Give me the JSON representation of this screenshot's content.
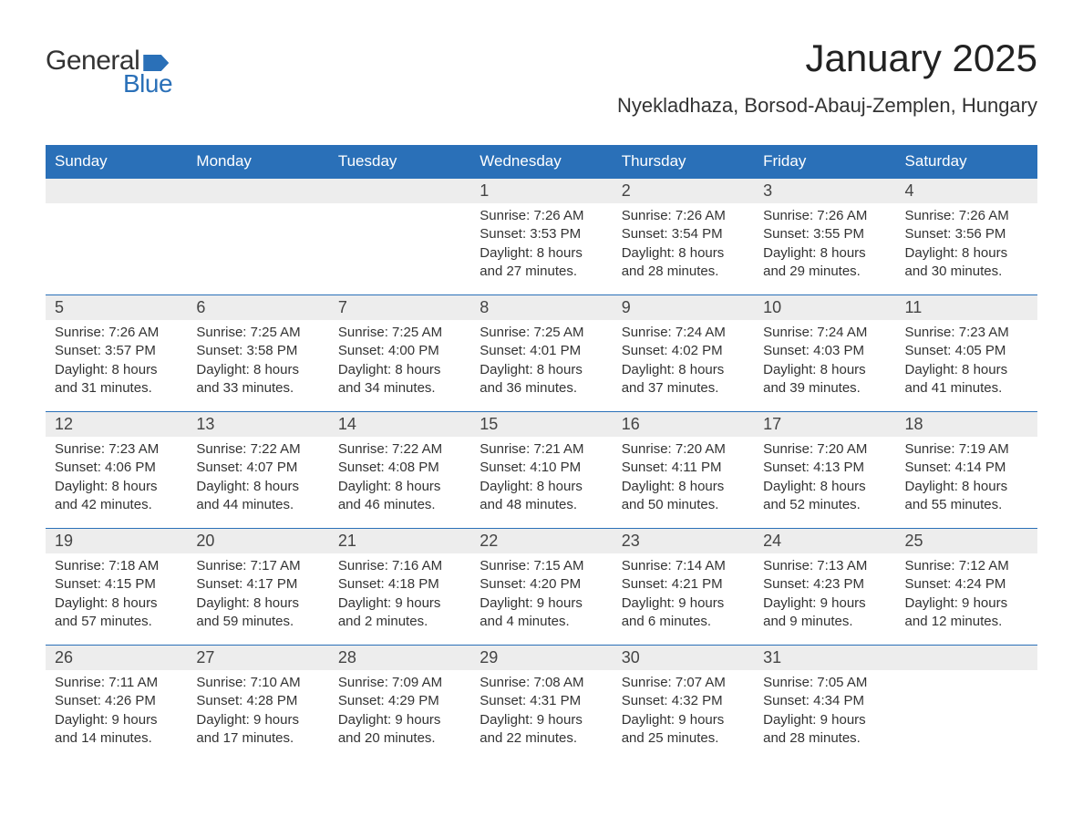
{
  "logo": {
    "general": "General",
    "blue": "Blue"
  },
  "header": {
    "title": "January 2025",
    "subtitle": "Nyekladhaza, Borsod-Abauj-Zemplen, Hungary"
  },
  "colors": {
    "accent": "#2a70b8",
    "header_bg": "#2a70b8",
    "day_num_bg": "#ededed"
  },
  "weekdays": [
    "Sunday",
    "Monday",
    "Tuesday",
    "Wednesday",
    "Thursday",
    "Friday",
    "Saturday"
  ],
  "weeks": [
    [
      {
        "empty": true
      },
      {
        "empty": true
      },
      {
        "empty": true
      },
      {
        "day": "1",
        "sunrise": "Sunrise: 7:26 AM",
        "sunset": "Sunset: 3:53 PM",
        "d1": "Daylight: 8 hours",
        "d2": "and 27 minutes."
      },
      {
        "day": "2",
        "sunrise": "Sunrise: 7:26 AM",
        "sunset": "Sunset: 3:54 PM",
        "d1": "Daylight: 8 hours",
        "d2": "and 28 minutes."
      },
      {
        "day": "3",
        "sunrise": "Sunrise: 7:26 AM",
        "sunset": "Sunset: 3:55 PM",
        "d1": "Daylight: 8 hours",
        "d2": "and 29 minutes."
      },
      {
        "day": "4",
        "sunrise": "Sunrise: 7:26 AM",
        "sunset": "Sunset: 3:56 PM",
        "d1": "Daylight: 8 hours",
        "d2": "and 30 minutes."
      }
    ],
    [
      {
        "day": "5",
        "sunrise": "Sunrise: 7:26 AM",
        "sunset": "Sunset: 3:57 PM",
        "d1": "Daylight: 8 hours",
        "d2": "and 31 minutes."
      },
      {
        "day": "6",
        "sunrise": "Sunrise: 7:25 AM",
        "sunset": "Sunset: 3:58 PM",
        "d1": "Daylight: 8 hours",
        "d2": "and 33 minutes."
      },
      {
        "day": "7",
        "sunrise": "Sunrise: 7:25 AM",
        "sunset": "Sunset: 4:00 PM",
        "d1": "Daylight: 8 hours",
        "d2": "and 34 minutes."
      },
      {
        "day": "8",
        "sunrise": "Sunrise: 7:25 AM",
        "sunset": "Sunset: 4:01 PM",
        "d1": "Daylight: 8 hours",
        "d2": "and 36 minutes."
      },
      {
        "day": "9",
        "sunrise": "Sunrise: 7:24 AM",
        "sunset": "Sunset: 4:02 PM",
        "d1": "Daylight: 8 hours",
        "d2": "and 37 minutes."
      },
      {
        "day": "10",
        "sunrise": "Sunrise: 7:24 AM",
        "sunset": "Sunset: 4:03 PM",
        "d1": "Daylight: 8 hours",
        "d2": "and 39 minutes."
      },
      {
        "day": "11",
        "sunrise": "Sunrise: 7:23 AM",
        "sunset": "Sunset: 4:05 PM",
        "d1": "Daylight: 8 hours",
        "d2": "and 41 minutes."
      }
    ],
    [
      {
        "day": "12",
        "sunrise": "Sunrise: 7:23 AM",
        "sunset": "Sunset: 4:06 PM",
        "d1": "Daylight: 8 hours",
        "d2": "and 42 minutes."
      },
      {
        "day": "13",
        "sunrise": "Sunrise: 7:22 AM",
        "sunset": "Sunset: 4:07 PM",
        "d1": "Daylight: 8 hours",
        "d2": "and 44 minutes."
      },
      {
        "day": "14",
        "sunrise": "Sunrise: 7:22 AM",
        "sunset": "Sunset: 4:08 PM",
        "d1": "Daylight: 8 hours",
        "d2": "and 46 minutes."
      },
      {
        "day": "15",
        "sunrise": "Sunrise: 7:21 AM",
        "sunset": "Sunset: 4:10 PM",
        "d1": "Daylight: 8 hours",
        "d2": "and 48 minutes."
      },
      {
        "day": "16",
        "sunrise": "Sunrise: 7:20 AM",
        "sunset": "Sunset: 4:11 PM",
        "d1": "Daylight: 8 hours",
        "d2": "and 50 minutes."
      },
      {
        "day": "17",
        "sunrise": "Sunrise: 7:20 AM",
        "sunset": "Sunset: 4:13 PM",
        "d1": "Daylight: 8 hours",
        "d2": "and 52 minutes."
      },
      {
        "day": "18",
        "sunrise": "Sunrise: 7:19 AM",
        "sunset": "Sunset: 4:14 PM",
        "d1": "Daylight: 8 hours",
        "d2": "and 55 minutes."
      }
    ],
    [
      {
        "day": "19",
        "sunrise": "Sunrise: 7:18 AM",
        "sunset": "Sunset: 4:15 PM",
        "d1": "Daylight: 8 hours",
        "d2": "and 57 minutes."
      },
      {
        "day": "20",
        "sunrise": "Sunrise: 7:17 AM",
        "sunset": "Sunset: 4:17 PM",
        "d1": "Daylight: 8 hours",
        "d2": "and 59 minutes."
      },
      {
        "day": "21",
        "sunrise": "Sunrise: 7:16 AM",
        "sunset": "Sunset: 4:18 PM",
        "d1": "Daylight: 9 hours",
        "d2": "and 2 minutes."
      },
      {
        "day": "22",
        "sunrise": "Sunrise: 7:15 AM",
        "sunset": "Sunset: 4:20 PM",
        "d1": "Daylight: 9 hours",
        "d2": "and 4 minutes."
      },
      {
        "day": "23",
        "sunrise": "Sunrise: 7:14 AM",
        "sunset": "Sunset: 4:21 PM",
        "d1": "Daylight: 9 hours",
        "d2": "and 6 minutes."
      },
      {
        "day": "24",
        "sunrise": "Sunrise: 7:13 AM",
        "sunset": "Sunset: 4:23 PM",
        "d1": "Daylight: 9 hours",
        "d2": "and 9 minutes."
      },
      {
        "day": "25",
        "sunrise": "Sunrise: 7:12 AM",
        "sunset": "Sunset: 4:24 PM",
        "d1": "Daylight: 9 hours",
        "d2": "and 12 minutes."
      }
    ],
    [
      {
        "day": "26",
        "sunrise": "Sunrise: 7:11 AM",
        "sunset": "Sunset: 4:26 PM",
        "d1": "Daylight: 9 hours",
        "d2": "and 14 minutes."
      },
      {
        "day": "27",
        "sunrise": "Sunrise: 7:10 AM",
        "sunset": "Sunset: 4:28 PM",
        "d1": "Daylight: 9 hours",
        "d2": "and 17 minutes."
      },
      {
        "day": "28",
        "sunrise": "Sunrise: 7:09 AM",
        "sunset": "Sunset: 4:29 PM",
        "d1": "Daylight: 9 hours",
        "d2": "and 20 minutes."
      },
      {
        "day": "29",
        "sunrise": "Sunrise: 7:08 AM",
        "sunset": "Sunset: 4:31 PM",
        "d1": "Daylight: 9 hours",
        "d2": "and 22 minutes."
      },
      {
        "day": "30",
        "sunrise": "Sunrise: 7:07 AM",
        "sunset": "Sunset: 4:32 PM",
        "d1": "Daylight: 9 hours",
        "d2": "and 25 minutes."
      },
      {
        "day": "31",
        "sunrise": "Sunrise: 7:05 AM",
        "sunset": "Sunset: 4:34 PM",
        "d1": "Daylight: 9 hours",
        "d2": "and 28 minutes."
      },
      {
        "empty": true
      }
    ]
  ]
}
